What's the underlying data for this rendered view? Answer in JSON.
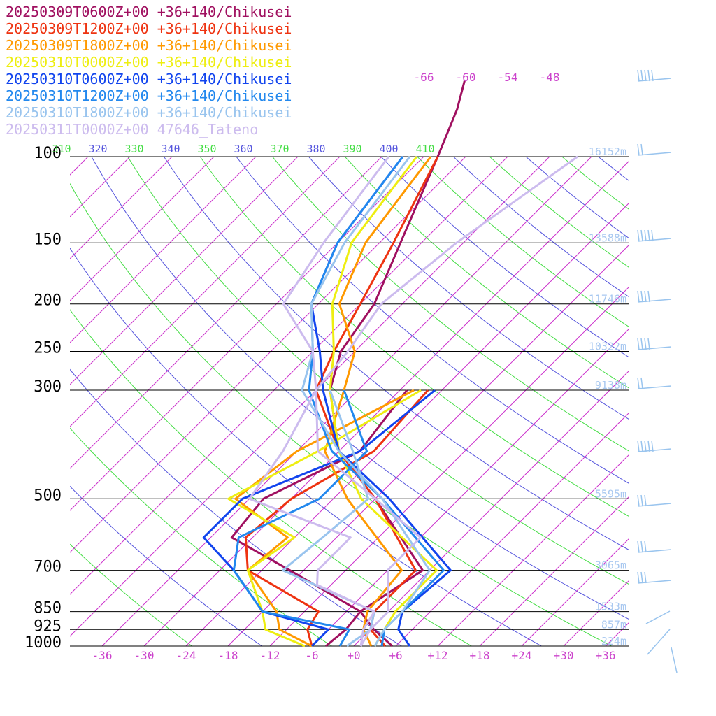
{
  "chart_data": {
    "type": "line",
    "y_scale": "log",
    "y_axis": {
      "unit": "hPa",
      "levels": [
        100,
        150,
        200,
        250,
        300,
        500,
        700,
        850,
        925,
        1000
      ],
      "labels": [
        "100",
        "150",
        "200",
        "250",
        "300",
        "500",
        "700",
        "850",
        "925",
        "1000"
      ]
    },
    "x_axis": {
      "unit": "degC",
      "ticks": [
        -36,
        -30,
        -24,
        -18,
        -12,
        -6,
        0,
        6,
        12,
        18,
        24,
        30,
        36
      ],
      "labels": [
        "-36",
        "-30",
        "-24",
        "-18",
        "-12",
        "-6",
        "+0",
        "+6",
        "+12",
        "+18",
        "+24",
        "+30",
        "+36"
      ]
    },
    "isotherm_top_labels": [
      "-66",
      "-60",
      "-54",
      "-48"
    ],
    "theta_labels": [
      {
        "text": "310",
        "color": "#44dd44"
      },
      {
        "text": "320",
        "color": "#5555dd"
      },
      {
        "text": "330",
        "color": "#44dd44"
      },
      {
        "text": "340",
        "color": "#5555dd"
      },
      {
        "text": "350",
        "color": "#44dd44"
      },
      {
        "text": "360",
        "color": "#5555dd"
      },
      {
        "text": "370",
        "color": "#44dd44"
      },
      {
        "text": "380",
        "color": "#5555dd"
      },
      {
        "text": "390",
        "color": "#44dd44"
      },
      {
        "text": "400",
        "color": "#5555dd"
      },
      {
        "text": "410",
        "color": "#44dd44"
      }
    ],
    "height_labels": [
      {
        "pressure": 100,
        "text": "16152m"
      },
      {
        "pressure": 150,
        "text": "13588m"
      },
      {
        "pressure": 200,
        "text": "11746m"
      },
      {
        "pressure": 250,
        "text": "10322m"
      },
      {
        "pressure": 300,
        "text": "9138m"
      },
      {
        "pressure": 500,
        "text": "5595m"
      },
      {
        "pressure": 700,
        "text": "3065m"
      },
      {
        "pressure": 850,
        "text": "1533m"
      },
      {
        "pressure": 925,
        "text": "857m"
      },
      {
        "pressure": 1000,
        "text": "224m"
      }
    ],
    "series": [
      {
        "name": "20250309T0600Z+00 +36+140/Chikusei",
        "color": "#a01060",
        "temperature": [
          [
            1000,
            5.5
          ],
          [
            925,
            0.5
          ],
          [
            850,
            -4
          ],
          [
            700,
            -1
          ],
          [
            500,
            -18
          ],
          [
            400,
            -30
          ],
          [
            300,
            -40
          ],
          [
            250,
            -44
          ],
          [
            200,
            -46
          ],
          [
            150,
            -51
          ],
          [
            100,
            -58
          ],
          [
            80,
            -62
          ],
          [
            70,
            -65
          ]
        ],
        "dewpoint": [
          [
            1000,
            -4
          ],
          [
            925,
            -3.5
          ],
          [
            850,
            -4
          ],
          [
            700,
            -20
          ],
          [
            600,
            -33
          ],
          [
            500,
            -34
          ],
          [
            400,
            -27
          ],
          [
            300,
            -29
          ]
        ]
      },
      {
        "name": "20250309T1200Z+00 +36+140/Chikusei",
        "color": "#ee3311",
        "temperature": [
          [
            1000,
            4.5
          ],
          [
            925,
            0
          ],
          [
            850,
            -2
          ],
          [
            700,
            -2
          ],
          [
            500,
            -18
          ],
          [
            400,
            -30
          ],
          [
            300,
            -42
          ],
          [
            250,
            -45
          ],
          [
            200,
            -48
          ],
          [
            150,
            -52
          ],
          [
            100,
            -58
          ]
        ],
        "dewpoint": [
          [
            1000,
            -6
          ],
          [
            925,
            -9
          ],
          [
            850,
            -10
          ],
          [
            700,
            -26
          ],
          [
            600,
            -31
          ],
          [
            500,
            -30
          ],
          [
            400,
            -25
          ],
          [
            300,
            -26
          ]
        ]
      },
      {
        "name": "20250309T1800Z+00 +36+140/Chikusei",
        "color": "#ff9900",
        "temperature": [
          [
            1000,
            2.5
          ],
          [
            925,
            -1
          ],
          [
            850,
            -3
          ],
          [
            700,
            -4
          ],
          [
            500,
            -22
          ],
          [
            400,
            -32
          ],
          [
            300,
            -38
          ],
          [
            250,
            -42
          ],
          [
            200,
            -51
          ],
          [
            150,
            -56
          ],
          [
            100,
            -59
          ]
        ],
        "dewpoint": [
          [
            1000,
            -6
          ],
          [
            925,
            -13
          ],
          [
            850,
            -16
          ],
          [
            700,
            -26
          ],
          [
            600,
            -25
          ],
          [
            500,
            -38
          ],
          [
            400,
            -36
          ],
          [
            300,
            -28
          ]
        ]
      },
      {
        "name": "20250310T0000Z+00 +36+140/Chikusei",
        "color": "#eeee11",
        "temperature": [
          [
            1000,
            3
          ],
          [
            925,
            2
          ],
          [
            850,
            1
          ],
          [
            700,
            1
          ],
          [
            500,
            -20
          ],
          [
            400,
            -30
          ],
          [
            300,
            -40
          ],
          [
            250,
            -45
          ],
          [
            200,
            -52
          ],
          [
            150,
            -58
          ],
          [
            100,
            -61
          ]
        ],
        "dewpoint": [
          [
            1000,
            -7
          ],
          [
            925,
            -15
          ],
          [
            850,
            -18
          ],
          [
            700,
            -26
          ],
          [
            600,
            -24
          ],
          [
            500,
            -39
          ],
          [
            400,
            -33
          ],
          [
            300,
            -27
          ]
        ]
      },
      {
        "name": "20250310T0600Z+00 +36+140/Chikusei",
        "color": "#1144ee",
        "temperature": [
          [
            1000,
            8
          ],
          [
            925,
            4
          ],
          [
            850,
            2
          ],
          [
            700,
            3
          ],
          [
            500,
            -16
          ],
          [
            400,
            -30
          ],
          [
            300,
            -41
          ],
          [
            250,
            -47
          ],
          [
            200,
            -55
          ],
          [
            150,
            -60
          ],
          [
            100,
            -63
          ]
        ],
        "dewpoint": [
          [
            1000,
            -6
          ],
          [
            925,
            -6
          ],
          [
            850,
            -18
          ],
          [
            700,
            -28
          ],
          [
            600,
            -37
          ],
          [
            500,
            -37
          ],
          [
            400,
            -27
          ],
          [
            300,
            -25
          ]
        ]
      },
      {
        "name": "20250310T1200Z+00 +36+140/Chikusei",
        "color": "#2288ee",
        "temperature": [
          [
            1000,
            4
          ],
          [
            925,
            2
          ],
          [
            850,
            2
          ],
          [
            700,
            2
          ],
          [
            500,
            -17
          ],
          [
            400,
            -31
          ],
          [
            300,
            -43
          ],
          [
            250,
            -48
          ],
          [
            200,
            -55
          ],
          [
            150,
            -60
          ],
          [
            100,
            -63
          ]
        ],
        "dewpoint": [
          [
            1000,
            -2
          ],
          [
            925,
            -3
          ],
          [
            850,
            -18
          ],
          [
            700,
            -28
          ],
          [
            600,
            -32
          ],
          [
            500,
            -26
          ],
          [
            400,
            -26
          ],
          [
            300,
            -38
          ]
        ]
      },
      {
        "name": "20250310T1800Z+00 +36+140/Chikusei",
        "color": "#99c4ee",
        "temperature": [
          [
            1000,
            3
          ],
          [
            925,
            2
          ],
          [
            850,
            2
          ],
          [
            700,
            0
          ],
          [
            500,
            -17
          ],
          [
            400,
            -30
          ],
          [
            300,
            -44
          ],
          [
            250,
            -48
          ],
          [
            200,
            -55
          ],
          [
            150,
            -59
          ],
          [
            100,
            -62
          ]
        ],
        "dewpoint": [
          [
            1000,
            -1
          ],
          [
            925,
            0
          ],
          [
            850,
            -2
          ],
          [
            700,
            -21
          ],
          [
            600,
            -20
          ],
          [
            500,
            -19
          ],
          [
            400,
            -28
          ],
          [
            300,
            -40
          ]
        ]
      },
      {
        "name": "20250311T0000Z+00 47646_Tateno",
        "color": "#ccbbee",
        "temperature": [
          [
            1000,
            1
          ],
          [
            925,
            0
          ],
          [
            850,
            0
          ],
          [
            700,
            -6
          ],
          [
            600,
            -6
          ],
          [
            500,
            -18
          ],
          [
            400,
            -33
          ],
          [
            300,
            -42
          ],
          [
            250,
            -48
          ],
          [
            200,
            -59
          ],
          [
            150,
            -62
          ],
          [
            100,
            -65
          ]
        ],
        "dewpoint": [
          [
            1000,
            1
          ],
          [
            925,
            -1
          ],
          [
            850,
            -2
          ],
          [
            750,
            -14
          ],
          [
            700,
            -16
          ],
          [
            600,
            -16
          ],
          [
            500,
            -36
          ],
          [
            400,
            -38
          ],
          [
            300,
            -42
          ],
          [
            250,
            -43
          ],
          [
            200,
            -45
          ],
          [
            150,
            -43
          ],
          [
            100,
            -38
          ]
        ]
      }
    ]
  }
}
